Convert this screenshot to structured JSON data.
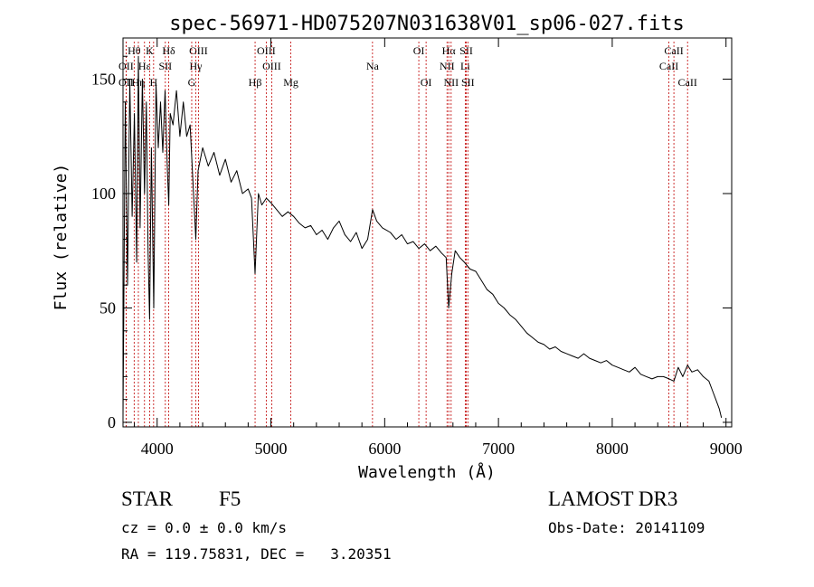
{
  "chart_data": {
    "type": "line",
    "title": "spec-56971-HD075207N031638V01_sp06-027.fits",
    "xlabel": "Wavelength (Å)",
    "ylabel": "Flux (relative)",
    "xlim": [
      3700,
      9050
    ],
    "ylim": [
      -2,
      168
    ],
    "xticks": [
      4000,
      5000,
      6000,
      7000,
      8000,
      9000
    ],
    "yticks": [
      0,
      50,
      100,
      150
    ],
    "series": [
      {
        "name": "spectrum",
        "x": [
          3700,
          3720,
          3740,
          3760,
          3780,
          3800,
          3820,
          3835,
          3850,
          3870,
          3889,
          3905,
          3920,
          3934,
          3950,
          3970,
          3990,
          4010,
          4030,
          4050,
          4070,
          4090,
          4102,
          4115,
          4140,
          4170,
          4200,
          4230,
          4260,
          4290,
          4320,
          4340,
          4360,
          4400,
          4450,
          4500,
          4550,
          4600,
          4650,
          4700,
          4750,
          4800,
          4830,
          4861,
          4890,
          4920,
          4960,
          5000,
          5050,
          5100,
          5150,
          5200,
          5250,
          5300,
          5350,
          5400,
          5450,
          5500,
          5550,
          5600,
          5650,
          5700,
          5750,
          5800,
          5850,
          5893,
          5930,
          5980,
          6050,
          6100,
          6150,
          6200,
          6250,
          6300,
          6350,
          6400,
          6450,
          6500,
          6540,
          6563,
          6590,
          6620,
          6660,
          6700,
          6750,
          6800,
          6850,
          6900,
          6950,
          7000,
          7050,
          7100,
          7150,
          7200,
          7250,
          7300,
          7350,
          7400,
          7450,
          7500,
          7550,
          7600,
          7650,
          7700,
          7750,
          7800,
          7850,
          7900,
          7950,
          8000,
          8050,
          8100,
          8150,
          8200,
          8250,
          8300,
          8350,
          8400,
          8450,
          8500,
          8542,
          8580,
          8620,
          8662,
          8700,
          8750,
          8800,
          8850,
          8880,
          8910,
          8940,
          8960
        ],
        "y": [
          2,
          140,
          60,
          150,
          90,
          135,
          70,
          160,
          85,
          150,
          100,
          140,
          75,
          45,
          120,
          50,
          148,
          120,
          140,
          118,
          145,
          110,
          95,
          135,
          130,
          145,
          125,
          140,
          125,
          130,
          100,
          80,
          110,
          120,
          112,
          118,
          108,
          115,
          105,
          110,
          100,
          102,
          98,
          65,
          100,
          95,
          98,
          96,
          93,
          90,
          92,
          90,
          87,
          85,
          86,
          82,
          84,
          80,
          85,
          88,
          82,
          79,
          83,
          76,
          80,
          93,
          88,
          85,
          83,
          80,
          82,
          78,
          79,
          76,
          78,
          75,
          77,
          74,
          72,
          50,
          65,
          75,
          72,
          70,
          67,
          66,
          62,
          58,
          56,
          52,
          50,
          47,
          45,
          42,
          39,
          37,
          35,
          34,
          32,
          33,
          31,
          30,
          29,
          28,
          30,
          28,
          27,
          26,
          27,
          25,
          24,
          23,
          22,
          24,
          21,
          20,
          19,
          20,
          20,
          19,
          18,
          24,
          20,
          25,
          22,
          23,
          20,
          18,
          14,
          10,
          6,
          2
        ]
      }
    ],
    "lines": [
      {
        "label": "OII",
        "wl": 3727,
        "row": 2
      },
      {
        "label": "Hθ",
        "wl": 3798,
        "row": 0
      },
      {
        "label": "OII",
        "wl": 3727,
        "row": 1
      },
      {
        "label": "Hη",
        "wl": 3835,
        "row": 2
      },
      {
        "label": "Hε",
        "wl": 3889,
        "row": 1
      },
      {
        "label": "K",
        "wl": 3934,
        "row": 0
      },
      {
        "label": "H",
        "wl": 3969,
        "row": 2
      },
      {
        "label": "SII",
        "wl": 4072,
        "row": 1
      },
      {
        "label": "Hδ",
        "wl": 4102,
        "row": 0
      },
      {
        "label": "OIII",
        "wl": 4363,
        "row": 0
      },
      {
        "label": "Hγ",
        "wl": 4340,
        "row": 1
      },
      {
        "label": "G",
        "wl": 4304,
        "row": 2
      },
      {
        "label": "Hβ",
        "wl": 4861,
        "row": 2
      },
      {
        "label": "OIII",
        "wl": 4959,
        "row": 0
      },
      {
        "label": "OIII",
        "wl": 5007,
        "row": 1
      },
      {
        "label": "Mg",
        "wl": 5175,
        "row": 2
      },
      {
        "label": "Na",
        "wl": 5893,
        "row": 1
      },
      {
        "label": "OI",
        "wl": 6300,
        "row": 0
      },
      {
        "label": "OI",
        "wl": 6364,
        "row": 2
      },
      {
        "label": "Hα",
        "wl": 6563,
        "row": 0
      },
      {
        "label": "NII",
        "wl": 6548,
        "row": 1
      },
      {
        "label": "NII",
        "wl": 6584,
        "row": 2
      },
      {
        "label": "SII",
        "wl": 6717,
        "row": 0
      },
      {
        "label": "Li",
        "wl": 6708,
        "row": 1
      },
      {
        "label": "SII",
        "wl": 6731,
        "row": 2
      },
      {
        "label": "CaII",
        "wl": 8542,
        "row": 0
      },
      {
        "label": "CaII",
        "wl": 8498,
        "row": 1
      },
      {
        "label": "CaII",
        "wl": 8662,
        "row": 2
      }
    ]
  },
  "info": {
    "class": "STAR",
    "subclass": "F5",
    "survey": "LAMOST DR3",
    "cz": "cz = 0.0 ± 0.0 km/s",
    "obsdate": "Obs-Date: 20141109",
    "radec": "RA = 119.75831, DEC =   3.20351"
  }
}
